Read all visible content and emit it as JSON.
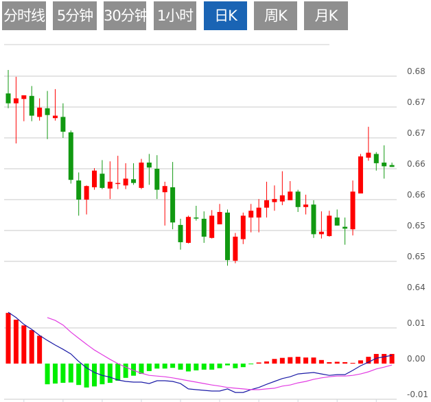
{
  "tabs": [
    {
      "label": "分时线",
      "active": false
    },
    {
      "label": "5分钟",
      "active": false
    },
    {
      "label": "30分钟",
      "active": false
    },
    {
      "label": "1小时",
      "active": false
    },
    {
      "label": "日K",
      "active": true
    },
    {
      "label": "周K",
      "active": false
    },
    {
      "label": "月K",
      "active": false
    }
  ],
  "colors": {
    "up": "#ff0000",
    "down": "#119911",
    "hist_up": "#ff0000",
    "hist_down": "#00ee00",
    "dif": "#1a1aa6",
    "dea": "#e23be2",
    "tab_active": "#1a64b4",
    "tab": "#8f8f8f",
    "grid": "#dddddd"
  },
  "chart_data": [
    {
      "type": "candlestick",
      "title": "",
      "y_ticks": [
        {
          "value": 0.68,
          "label": "0.68"
        },
        {
          "value": 0.675,
          "label": "0.67"
        },
        {
          "value": 0.67,
          "label": "0.67"
        },
        {
          "value": 0.665,
          "label": "0.66"
        },
        {
          "value": 0.66,
          "label": "0.66"
        },
        {
          "value": 0.655,
          "label": "0.65"
        },
        {
          "value": 0.65,
          "label": "0.65"
        },
        {
          "value": 0.645,
          "label": "0.64"
        }
      ],
      "ylim": [
        0.645,
        0.682
      ],
      "grid": true,
      "ohlc": [
        [
          0.6772,
          0.681,
          0.6748,
          0.6756
        ],
        [
          0.6756,
          0.6799,
          0.6691,
          0.6764
        ],
        [
          0.6763,
          0.6769,
          0.6727,
          0.6769
        ],
        [
          0.6768,
          0.6784,
          0.6727,
          0.6736
        ],
        [
          0.6734,
          0.6764,
          0.6728,
          0.6749
        ],
        [
          0.6748,
          0.6776,
          0.6698,
          0.6737
        ],
        [
          0.6732,
          0.6779,
          0.6728,
          0.6736
        ],
        [
          0.6734,
          0.6756,
          0.67,
          0.671
        ],
        [
          0.6709,
          0.6712,
          0.6626,
          0.6632
        ],
        [
          0.6631,
          0.6644,
          0.6574,
          0.66
        ],
        [
          0.66,
          0.6623,
          0.6576,
          0.6622
        ],
        [
          0.662,
          0.6651,
          0.6616,
          0.6647
        ],
        [
          0.6642,
          0.6664,
          0.6617,
          0.6619
        ],
        [
          0.6618,
          0.6662,
          0.6601,
          0.6629
        ],
        [
          0.6626,
          0.6671,
          0.6617,
          0.6627
        ],
        [
          0.6623,
          0.6659,
          0.6617,
          0.6634
        ],
        [
          0.6633,
          0.6659,
          0.6624,
          0.6627
        ],
        [
          0.6619,
          0.6666,
          0.6617,
          0.666
        ],
        [
          0.666,
          0.6674,
          0.6624,
          0.6652
        ],
        [
          0.665,
          0.6672,
          0.6601,
          0.6616
        ],
        [
          0.6612,
          0.6629,
          0.6558,
          0.6622
        ],
        [
          0.662,
          0.6661,
          0.6552,
          0.6563
        ],
        [
          0.6559,
          0.6569,
          0.6519,
          0.6531
        ],
        [
          0.653,
          0.6574,
          0.6529,
          0.6572
        ],
        [
          0.6571,
          0.659,
          0.6566,
          0.657
        ],
        [
          0.6569,
          0.6581,
          0.653,
          0.654
        ],
        [
          0.6538,
          0.6583,
          0.6537,
          0.6574
        ],
        [
          0.656,
          0.6593,
          0.656,
          0.658
        ],
        [
          0.6579,
          0.6584,
          0.6493,
          0.6502
        ],
        [
          0.6501,
          0.6546,
          0.6497,
          0.654
        ],
        [
          0.6536,
          0.6579,
          0.6528,
          0.6574
        ],
        [
          0.6571,
          0.6593,
          0.6547,
          0.6582
        ],
        [
          0.6571,
          0.6601,
          0.6547,
          0.6587
        ],
        [
          0.6587,
          0.6629,
          0.6571,
          0.6599
        ],
        [
          0.6596,
          0.6623,
          0.6582,
          0.6601
        ],
        [
          0.6597,
          0.6646,
          0.6591,
          0.6607
        ],
        [
          0.6599,
          0.663,
          0.6599,
          0.6613
        ],
        [
          0.6613,
          0.6616,
          0.658,
          0.6588
        ],
        [
          0.6588,
          0.6608,
          0.6576,
          0.6592
        ],
        [
          0.6592,
          0.6599,
          0.6538,
          0.6544
        ],
        [
          0.6544,
          0.6581,
          0.6537,
          0.6548
        ],
        [
          0.6541,
          0.6582,
          0.654,
          0.6574
        ],
        [
          0.6571,
          0.6584,
          0.6558,
          0.6558
        ],
        [
          0.6556,
          0.6571,
          0.6527,
          0.6553
        ],
        [
          0.6552,
          0.6631,
          0.6542,
          0.6613
        ],
        [
          0.661,
          0.6674,
          0.661,
          0.667
        ],
        [
          0.6668,
          0.6718,
          0.6663,
          0.6676
        ],
        [
          0.6674,
          0.6677,
          0.6647,
          0.6659
        ],
        [
          0.666,
          0.6688,
          0.6634,
          0.6654
        ],
        [
          0.6656,
          0.666,
          0.6653,
          0.6653
        ]
      ]
    },
    {
      "type": "macd",
      "y_ticks": [
        {
          "value": 0.01,
          "label": "0.01"
        },
        {
          "value": 0.0,
          "label": "0.00"
        },
        {
          "value": -0.01,
          "label": "-0.01"
        }
      ],
      "ylim": [
        -0.01,
        0.01
      ],
      "grid": true,
      "histogram": [
        0.0142,
        0.0123,
        0.0107,
        0.0094,
        0.0078,
        -0.0058,
        -0.0056,
        -0.0054,
        -0.0053,
        -0.006,
        -0.0067,
        -0.0064,
        -0.0058,
        -0.0054,
        -0.0048,
        -0.004,
        -0.0034,
        -0.0029,
        -0.0021,
        -0.0014,
        -0.0014,
        -0.0012,
        -0.0017,
        -0.0022,
        -0.0019,
        -0.0017,
        -0.0017,
        -0.0013,
        -0.0005,
        -0.0013,
        -0.001,
        -0.0001,
        0.0003,
        0.0006,
        0.0013,
        0.0016,
        0.0018,
        0.0019,
        0.0017,
        0.0017,
        0.001,
        0.0004,
        0.0005,
        0.0004,
        0.0002,
        0.0009,
        0.0019,
        0.0027,
        0.0027,
        0.0027
      ],
      "series": [
        {
          "name": "DIF",
          "values": [
            0.0144,
            0.0129,
            0.011,
            0.0096,
            0.0079,
            0.0065,
            0.0052,
            0.004,
            0.0027,
            0.0006,
            -0.0012,
            -0.0025,
            -0.0033,
            -0.0038,
            -0.0046,
            -0.005,
            -0.0052,
            -0.0052,
            -0.0056,
            -0.0048,
            -0.0048,
            -0.005,
            -0.0056,
            -0.0071,
            -0.0073,
            -0.0075,
            -0.0077,
            -0.0077,
            -0.0071,
            -0.0081,
            -0.0081,
            -0.0073,
            -0.0067,
            -0.0058,
            -0.005,
            -0.0042,
            -0.0037,
            -0.0029,
            -0.0027,
            -0.0025,
            -0.0029,
            -0.0033,
            -0.0031,
            -0.0031,
            -0.0019,
            -0.0006,
            0.0004,
            0.0015,
            0.0019,
            0.0023
          ]
        },
        {
          "name": "DEA",
          "values": [
            null,
            null,
            null,
            null,
            null,
            0.0129,
            0.0121,
            0.0108,
            0.0088,
            0.0071,
            0.0054,
            0.0038,
            0.0025,
            0.0012,
            0.0,
            -0.001,
            -0.0019,
            -0.0027,
            -0.0033,
            -0.0035,
            -0.0037,
            -0.004,
            -0.0044,
            -0.0048,
            -0.0052,
            -0.0056,
            -0.006,
            -0.0063,
            -0.0067,
            -0.0069,
            -0.0071,
            -0.0073,
            -0.0073,
            -0.0071,
            -0.0069,
            -0.0063,
            -0.006,
            -0.0054,
            -0.005,
            -0.0044,
            -0.004,
            -0.0037,
            -0.0035,
            -0.0035,
            -0.0033,
            -0.0029,
            -0.0023,
            -0.0015,
            -0.001,
            -0.0004
          ]
        }
      ]
    }
  ]
}
